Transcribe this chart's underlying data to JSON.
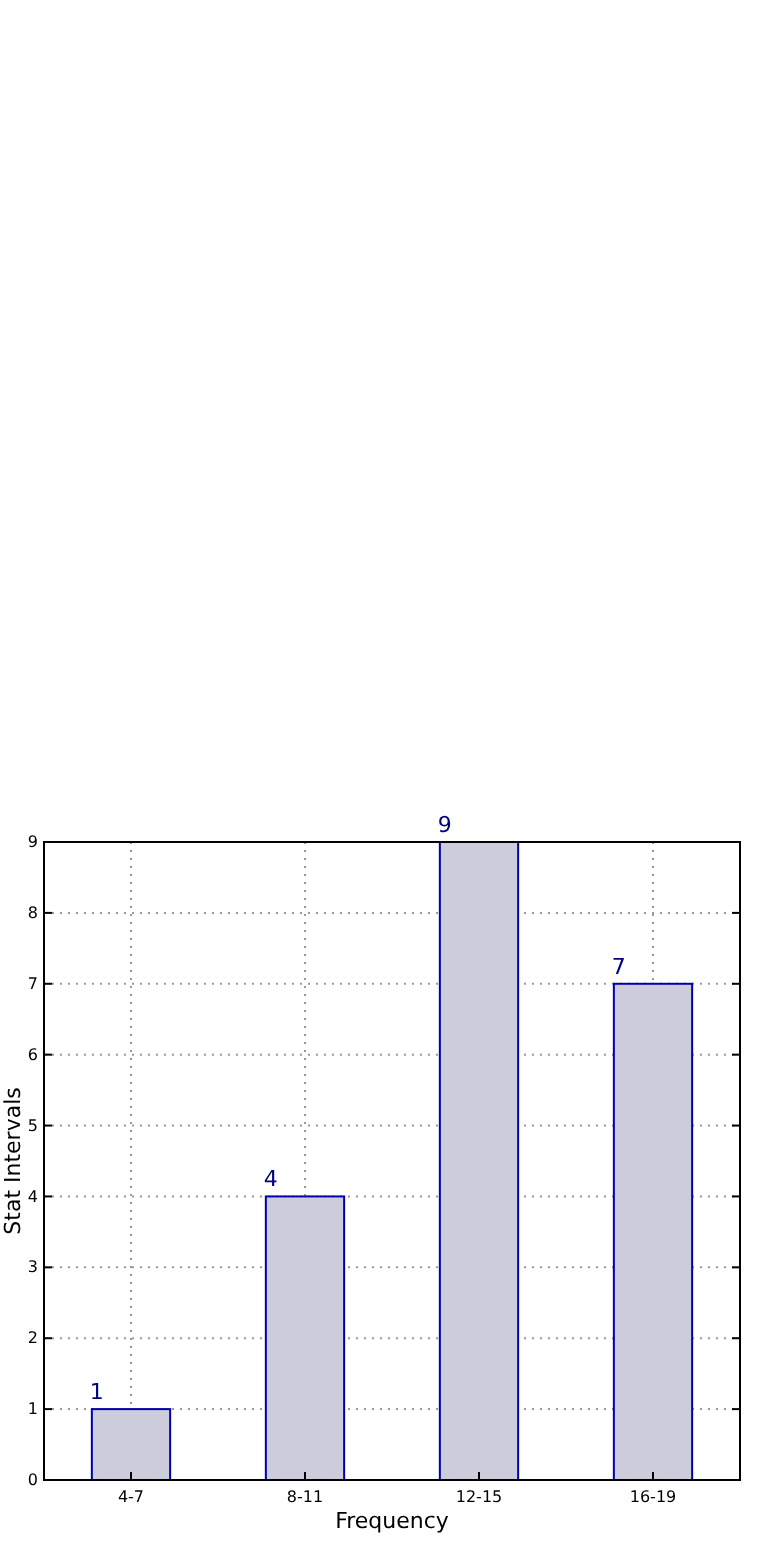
{
  "chart_data": {
    "type": "bar",
    "xlabel": "Frequency",
    "ylabel": "Stat Intervals",
    "categories": [
      "4-7",
      "8-11",
      "12-15",
      "16-19"
    ],
    "values": [
      1,
      4,
      9,
      7
    ],
    "color": "#ccccdd",
    "ylim": [
      0,
      9
    ],
    "yticks": [
      0,
      1,
      2,
      3,
      4,
      5,
      6,
      7,
      8,
      9
    ],
    "grid": true,
    "data_labels": true
  }
}
